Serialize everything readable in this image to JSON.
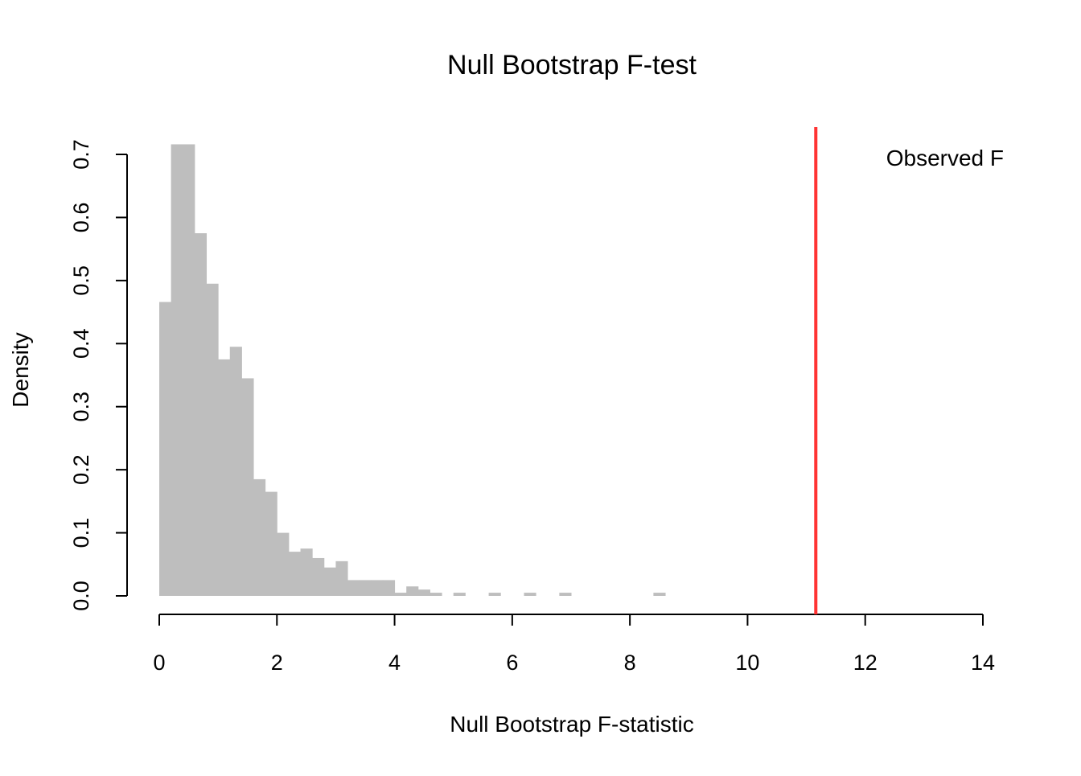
{
  "chart_data": {
    "type": "bar",
    "title": "Null Bootstrap F-test",
    "xlabel": "Null Bootstrap F-statistic",
    "ylabel": "Density",
    "xlim": [
      0,
      14
    ],
    "ylim": [
      0,
      0.7
    ],
    "x_ticks": [
      "0",
      "2",
      "4",
      "6",
      "8",
      "10",
      "12",
      "14"
    ],
    "y_ticks": [
      "0.0",
      "0.1",
      "0.2",
      "0.3",
      "0.4",
      "0.5",
      "0.6",
      "0.7"
    ],
    "bin_width": 0.2,
    "bins": [
      {
        "start": 0.0,
        "density": 0.466
      },
      {
        "start": 0.2,
        "density": 0.716
      },
      {
        "start": 0.4,
        "density": 0.716
      },
      {
        "start": 0.6,
        "density": 0.575
      },
      {
        "start": 0.8,
        "density": 0.495
      },
      {
        "start": 1.0,
        "density": 0.375
      },
      {
        "start": 1.2,
        "density": 0.395
      },
      {
        "start": 1.4,
        "density": 0.345
      },
      {
        "start": 1.6,
        "density": 0.185
      },
      {
        "start": 1.8,
        "density": 0.165
      },
      {
        "start": 2.0,
        "density": 0.1
      },
      {
        "start": 2.2,
        "density": 0.07
      },
      {
        "start": 2.4,
        "density": 0.075
      },
      {
        "start": 2.6,
        "density": 0.06
      },
      {
        "start": 2.8,
        "density": 0.045
      },
      {
        "start": 3.0,
        "density": 0.055
      },
      {
        "start": 3.2,
        "density": 0.025
      },
      {
        "start": 3.4,
        "density": 0.025
      },
      {
        "start": 3.6,
        "density": 0.025
      },
      {
        "start": 3.8,
        "density": 0.025
      },
      {
        "start": 4.0,
        "density": 0.005
      },
      {
        "start": 4.2,
        "density": 0.015
      },
      {
        "start": 4.4,
        "density": 0.01
      },
      {
        "start": 4.6,
        "density": 0.005
      },
      {
        "start": 5.0,
        "density": 0.005
      },
      {
        "start": 5.6,
        "density": 0.005
      },
      {
        "start": 6.2,
        "density": 0.005
      },
      {
        "start": 6.8,
        "density": 0.005
      },
      {
        "start": 8.4,
        "density": 0.005
      }
    ],
    "bar_color": "#bebebe",
    "observed_line": {
      "x": 11.16,
      "color": "#ff3333",
      "label": "Observed F"
    },
    "grid": false
  }
}
